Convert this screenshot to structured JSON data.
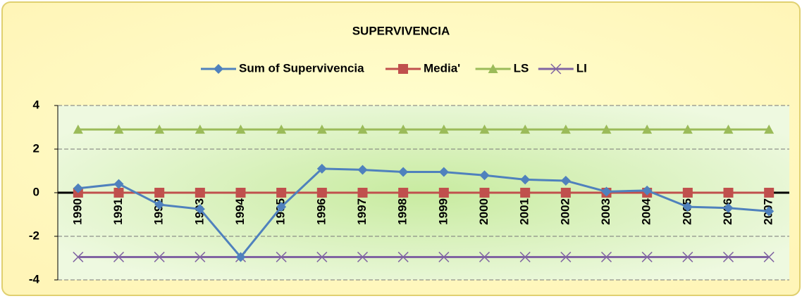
{
  "chart_data": {
    "type": "line",
    "title": "SUPERVIVENCIA",
    "categories": [
      "1990",
      "1991",
      "1992",
      "1993",
      "1994",
      "1995",
      "1996",
      "1997",
      "1998",
      "1999",
      "2000",
      "2001",
      "2002",
      "2003",
      "2004",
      "2005",
      "2006",
      "2007"
    ],
    "series": [
      {
        "name": "Sum of Supervivencia",
        "color": "#4f81bd",
        "marker": "diamond",
        "values": [
          0.2,
          0.4,
          -0.55,
          -0.75,
          -2.95,
          -0.65,
          1.1,
          1.05,
          0.95,
          0.95,
          0.8,
          0.6,
          0.55,
          0.05,
          0.1,
          -0.65,
          -0.7,
          -0.85
        ]
      },
      {
        "name": "Media'",
        "color": "#c0504d",
        "marker": "square",
        "values": [
          0,
          0,
          0,
          0,
          0,
          0,
          0,
          0,
          0,
          0,
          0,
          0,
          0,
          0,
          0,
          0,
          0,
          0
        ]
      },
      {
        "name": "LS",
        "color": "#9bbb59",
        "marker": "triangle",
        "values": [
          2.9,
          2.9,
          2.9,
          2.9,
          2.9,
          2.9,
          2.9,
          2.9,
          2.9,
          2.9,
          2.9,
          2.9,
          2.9,
          2.9,
          2.9,
          2.9,
          2.9,
          2.9
        ]
      },
      {
        "name": "LI",
        "color": "#8064a2",
        "marker": "x",
        "values": [
          -2.95,
          -2.95,
          -2.95,
          -2.95,
          -2.95,
          -2.95,
          -2.95,
          -2.95,
          -2.95,
          -2.95,
          -2.95,
          -2.95,
          -2.95,
          -2.95,
          -2.95,
          -2.95,
          -2.95,
          -2.95
        ]
      }
    ],
    "ylim": [
      -4,
      4
    ],
    "yticks": [
      -4,
      -2,
      0,
      2,
      4
    ],
    "grid": true,
    "legend": "top"
  }
}
